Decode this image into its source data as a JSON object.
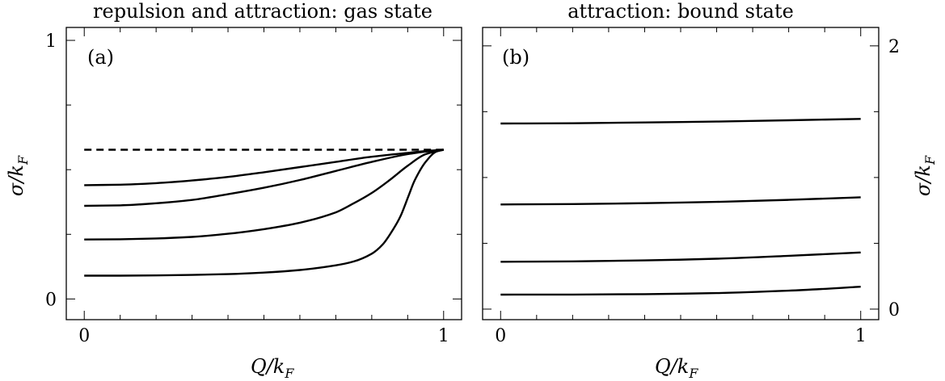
{
  "chart_data": [
    {
      "type": "line",
      "title": "repulsion and attraction: gas state",
      "panel_label": "(a)",
      "xlabel": "Q/k",
      "xlabel_sub": "F",
      "ylabel": "σ/k",
      "ylabel_sub": "F",
      "xlim": [
        -0.05,
        1.05
      ],
      "ylim": [
        -0.08,
        1.05
      ],
      "xticks": [
        {
          "value": 0,
          "label": "0"
        },
        {
          "value": 1,
          "label": "1"
        }
      ],
      "yticks": [
        {
          "value": 0,
          "label": "0"
        },
        {
          "value": 1,
          "label": "1"
        }
      ],
      "y_axis_side": "left",
      "series": [
        {
          "style": "dashed",
          "x": [
            0,
            1
          ],
          "y": [
            0.577,
            0.577
          ]
        },
        {
          "style": "solid",
          "x": [
            0,
            0.1,
            0.2,
            0.3,
            0.4,
            0.5,
            0.6,
            0.7,
            0.8,
            0.9,
            0.95,
            1.0
          ],
          "y": [
            0.44,
            0.442,
            0.448,
            0.458,
            0.472,
            0.49,
            0.51,
            0.53,
            0.55,
            0.565,
            0.572,
            0.577
          ]
        },
        {
          "style": "solid",
          "x": [
            0,
            0.1,
            0.2,
            0.3,
            0.4,
            0.5,
            0.6,
            0.7,
            0.8,
            0.9,
            0.95,
            1.0
          ],
          "y": [
            0.36,
            0.362,
            0.37,
            0.383,
            0.405,
            0.43,
            0.46,
            0.495,
            0.53,
            0.56,
            0.57,
            0.577
          ]
        },
        {
          "style": "solid",
          "x": [
            0,
            0.1,
            0.2,
            0.3,
            0.4,
            0.5,
            0.6,
            0.7,
            0.75,
            0.8,
            0.85,
            0.9,
            0.95,
            1.0
          ],
          "y": [
            0.23,
            0.231,
            0.234,
            0.24,
            0.252,
            0.27,
            0.295,
            0.335,
            0.37,
            0.41,
            0.46,
            0.515,
            0.56,
            0.577
          ]
        },
        {
          "style": "solid",
          "x": [
            0,
            0.1,
            0.2,
            0.3,
            0.4,
            0.5,
            0.6,
            0.7,
            0.75,
            0.8,
            0.83,
            0.86,
            0.88,
            0.9,
            0.92,
            0.95,
            0.98,
            1.0
          ],
          "y": [
            0.09,
            0.09,
            0.091,
            0.093,
            0.096,
            0.102,
            0.112,
            0.13,
            0.145,
            0.175,
            0.21,
            0.27,
            0.32,
            0.39,
            0.46,
            0.53,
            0.57,
            0.577
          ]
        }
      ]
    },
    {
      "type": "line",
      "title": "attraction: bound state",
      "panel_label": "(b)",
      "xlabel": "Q/k",
      "xlabel_sub": "F",
      "ylabel": "σ/k",
      "ylabel_sub": "F",
      "xlim": [
        -0.05,
        1.05
      ],
      "ylim": [
        -0.08,
        2.14
      ],
      "xticks": [
        {
          "value": 0,
          "label": "0"
        },
        {
          "value": 1,
          "label": "1"
        }
      ],
      "yticks": [
        {
          "value": 0,
          "label": "0"
        },
        {
          "value": 2,
          "label": "2"
        }
      ],
      "y_axis_side": "right",
      "series": [
        {
          "style": "solid",
          "x": [
            0,
            0.2,
            0.4,
            0.6,
            0.8,
            1.0
          ],
          "y": [
            1.41,
            1.412,
            1.418,
            1.425,
            1.435,
            1.445
          ]
        },
        {
          "style": "solid",
          "x": [
            0,
            0.2,
            0.4,
            0.6,
            0.8,
            1.0
          ],
          "y": [
            0.795,
            0.798,
            0.805,
            0.815,
            0.83,
            0.85
          ]
        },
        {
          "style": "solid",
          "x": [
            0,
            0.2,
            0.4,
            0.6,
            0.8,
            1.0
          ],
          "y": [
            0.36,
            0.363,
            0.37,
            0.383,
            0.405,
            0.43
          ]
        },
        {
          "style": "solid",
          "x": [
            0,
            0.2,
            0.4,
            0.6,
            0.8,
            1.0
          ],
          "y": [
            0.11,
            0.111,
            0.114,
            0.122,
            0.14,
            0.17
          ]
        }
      ]
    }
  ]
}
